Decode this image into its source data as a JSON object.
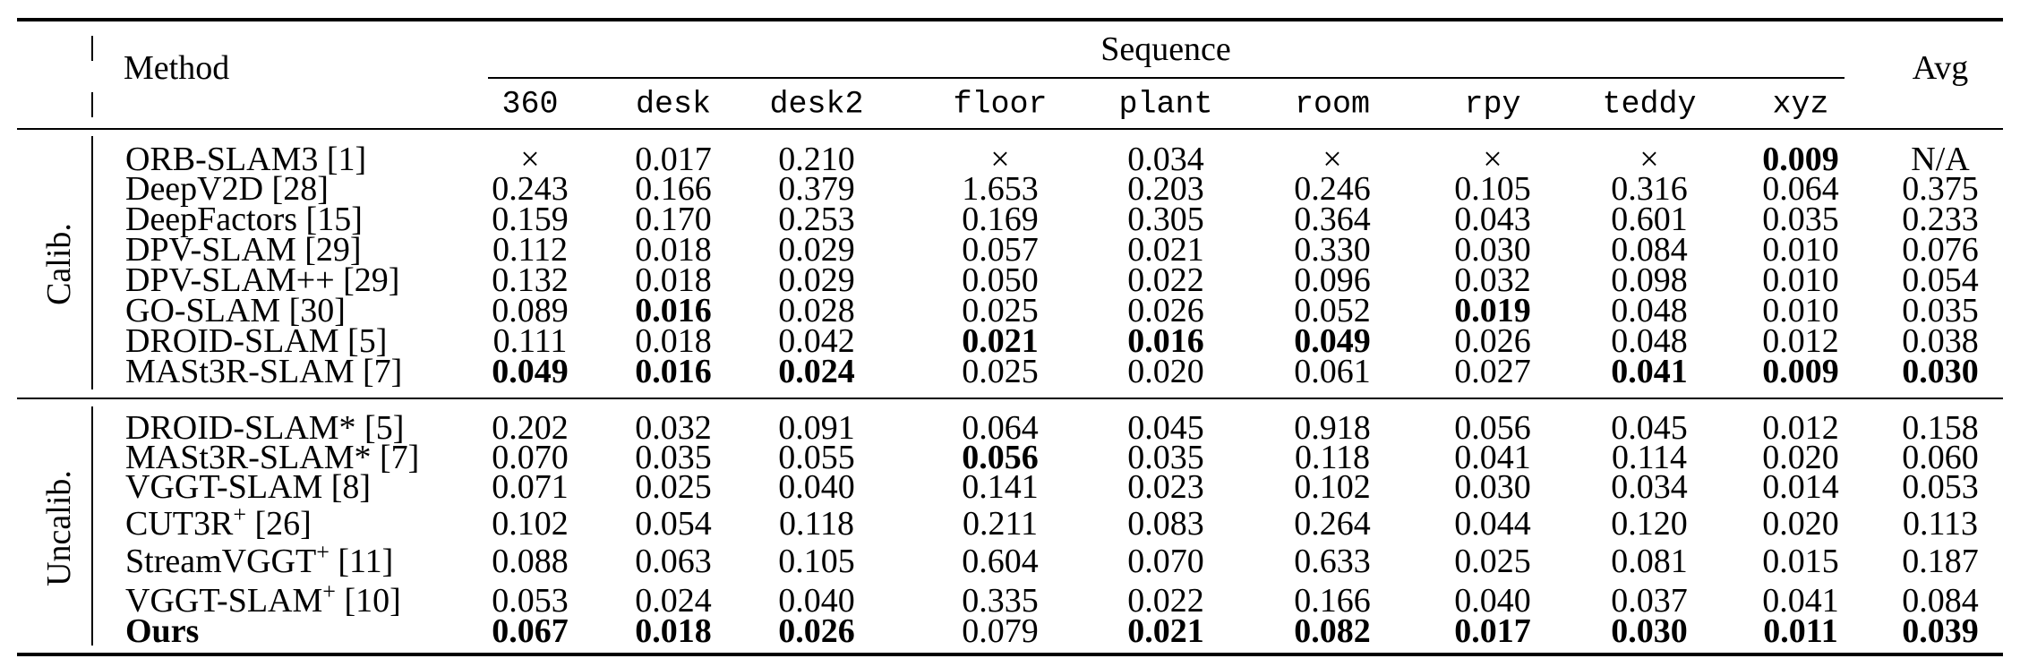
{
  "header": {
    "method": "Method",
    "sequence": "Sequence",
    "avg": "Avg",
    "columns": [
      "360",
      "desk",
      "desk2",
      "floor",
      "plant",
      "room",
      "rpy",
      "teddy",
      "xyz"
    ]
  },
  "groups": [
    {
      "label": "Calib.",
      "rows": [
        {
          "method": "ORB-SLAM3 [1]",
          "values": [
            "×",
            "0.017",
            "0.210",
            "×",
            "0.034",
            "×",
            "×",
            "×",
            "0.009"
          ],
          "avg": "N/A",
          "bold": [
            8
          ]
        },
        {
          "method": "DeepV2D [28]",
          "values": [
            "0.243",
            "0.166",
            "0.379",
            "1.653",
            "0.203",
            "0.246",
            "0.105",
            "0.316",
            "0.064"
          ],
          "avg": "0.375",
          "bold": []
        },
        {
          "method": "DeepFactors [15]",
          "values": [
            "0.159",
            "0.170",
            "0.253",
            "0.169",
            "0.305",
            "0.364",
            "0.043",
            "0.601",
            "0.035"
          ],
          "avg": "0.233",
          "bold": []
        },
        {
          "method": "DPV-SLAM [29]",
          "values": [
            "0.112",
            "0.018",
            "0.029",
            "0.057",
            "0.021",
            "0.330",
            "0.030",
            "0.084",
            "0.010"
          ],
          "avg": "0.076",
          "bold": []
        },
        {
          "method": "DPV-SLAM++ [29]",
          "values": [
            "0.132",
            "0.018",
            "0.029",
            "0.050",
            "0.022",
            "0.096",
            "0.032",
            "0.098",
            "0.010"
          ],
          "avg": "0.054",
          "bold": []
        },
        {
          "method": "GO-SLAM [30]",
          "values": [
            "0.089",
            "0.016",
            "0.028",
            "0.025",
            "0.026",
            "0.052",
            "0.019",
            "0.048",
            "0.010"
          ],
          "avg": "0.035",
          "bold": [
            1,
            6
          ]
        },
        {
          "method": "DROID-SLAM [5]",
          "values": [
            "0.111",
            "0.018",
            "0.042",
            "0.021",
            "0.016",
            "0.049",
            "0.026",
            "0.048",
            "0.012"
          ],
          "avg": "0.038",
          "bold": [
            3,
            4,
            5
          ]
        },
        {
          "method": "MASt3R-SLAM [7]",
          "values": [
            "0.049",
            "0.016",
            "0.024",
            "0.025",
            "0.020",
            "0.061",
            "0.027",
            "0.041",
            "0.009"
          ],
          "avg": "0.030",
          "bold": [
            0,
            1,
            2,
            7,
            8,
            9
          ]
        }
      ]
    },
    {
      "label": "Uncalib.",
      "rows": [
        {
          "method": "DROID-SLAM* [5]",
          "values": [
            "0.202",
            "0.032",
            "0.091",
            "0.064",
            "0.045",
            "0.918",
            "0.056",
            "0.045",
            "0.012"
          ],
          "avg": "0.158",
          "bold": []
        },
        {
          "method": "MASt3R-SLAM* [7]",
          "values": [
            "0.070",
            "0.035",
            "0.055",
            "0.056",
            "0.035",
            "0.118",
            "0.041",
            "0.114",
            "0.020"
          ],
          "avg": "0.060",
          "bold": [
            3
          ]
        },
        {
          "method": "VGGT-SLAM [8]",
          "values": [
            "0.071",
            "0.025",
            "0.040",
            "0.141",
            "0.023",
            "0.102",
            "0.030",
            "0.034",
            "0.014"
          ],
          "avg": "0.053",
          "bold": []
        },
        {
          "method": "CUT3R",
          "sup": "+",
          "ref": " [26]",
          "values": [
            "0.102",
            "0.054",
            "0.118",
            "0.211",
            "0.083",
            "0.264",
            "0.044",
            "0.120",
            "0.020"
          ],
          "avg": "0.113",
          "bold": []
        },
        {
          "method": "StreamVGGT",
          "sup": "+",
          "ref": " [11]",
          "values": [
            "0.088",
            "0.063",
            "0.105",
            "0.604",
            "0.070",
            "0.633",
            "0.025",
            "0.081",
            "0.015"
          ],
          "avg": "0.187",
          "bold": []
        },
        {
          "method": "VGGT-SLAM",
          "sup": "+",
          "ref": " [10]",
          "values": [
            "0.053",
            "0.024",
            "0.040",
            "0.335",
            "0.022",
            "0.166",
            "0.040",
            "0.037",
            "0.041"
          ],
          "avg": "0.084",
          "bold": []
        },
        {
          "method": "Ours",
          "values": [
            "0.067",
            "0.018",
            "0.026",
            "0.079",
            "0.021",
            "0.082",
            "0.017",
            "0.030",
            "0.011"
          ],
          "avg": "0.039",
          "bold": [
            0,
            1,
            2,
            4,
            5,
            6,
            7,
            8,
            9
          ],
          "method_bold": true
        }
      ]
    }
  ]
}
